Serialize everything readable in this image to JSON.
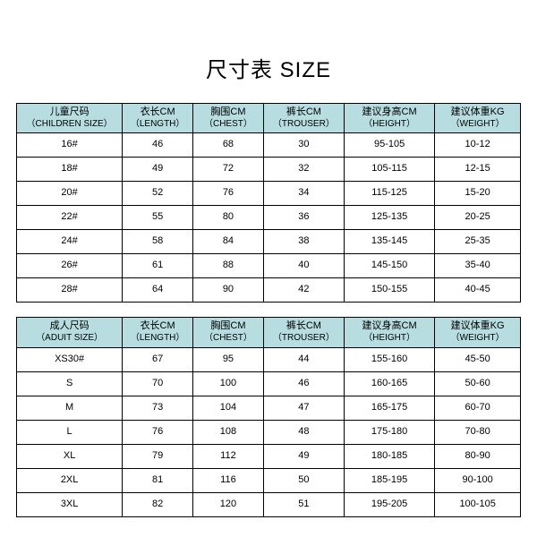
{
  "title": "尺寸表 SIZE",
  "colors": {
    "headerBg": "#b7dde1",
    "border": "#000000",
    "bodyBg": "#ffffff"
  },
  "fonts": {
    "titleSize": 24,
    "cellSize": 11
  },
  "childrenTable": {
    "columns": [
      {
        "cn": "儿童尺码",
        "en": "（CHILDREN SIZE）"
      },
      {
        "cn": "衣长CM",
        "en": "（LENGTH）"
      },
      {
        "cn": "胸围CM",
        "en": "（CHEST）"
      },
      {
        "cn": "裤长CM",
        "en": "（TROUSER）"
      },
      {
        "cn": "建议身高CM",
        "en": "（HEIGHT）"
      },
      {
        "cn": "建议体重KG",
        "en": "（WEIGHT）"
      }
    ],
    "rows": [
      [
        "16#",
        "46",
        "68",
        "30",
        "95-105",
        "10-12"
      ],
      [
        "18#",
        "49",
        "72",
        "32",
        "105-115",
        "12-15"
      ],
      [
        "20#",
        "52",
        "76",
        "34",
        "115-125",
        "15-20"
      ],
      [
        "22#",
        "55",
        "80",
        "36",
        "125-135",
        "20-25"
      ],
      [
        "24#",
        "58",
        "84",
        "38",
        "135-145",
        "25-35"
      ],
      [
        "26#",
        "61",
        "88",
        "40",
        "145-150",
        "35-40"
      ],
      [
        "28#",
        "64",
        "90",
        "42",
        "150-155",
        "40-45"
      ]
    ]
  },
  "adultTable": {
    "columns": [
      {
        "cn": "成人尺码",
        "en": "（ADUIT SIZE）"
      },
      {
        "cn": "衣长CM",
        "en": "（LENGTH）"
      },
      {
        "cn": "胸围CM",
        "en": "（CHEST）"
      },
      {
        "cn": "裤长CM",
        "en": "（TROUSER）"
      },
      {
        "cn": "建议身高CM",
        "en": "（HEIGHT）"
      },
      {
        "cn": "建议体重KG",
        "en": "（WEIGHT）"
      }
    ],
    "rows": [
      [
        "XS30#",
        "67",
        "95",
        "44",
        "155-160",
        "45-50"
      ],
      [
        "S",
        "70",
        "100",
        "46",
        "160-165",
        "50-60"
      ],
      [
        "M",
        "73",
        "104",
        "47",
        "165-175",
        "60-70"
      ],
      [
        "L",
        "76",
        "108",
        "48",
        "175-180",
        "70-80"
      ],
      [
        "XL",
        "79",
        "112",
        "49",
        "180-185",
        "80-90"
      ],
      [
        "2XL",
        "81",
        "116",
        "50",
        "185-195",
        "90-100"
      ],
      [
        "3XL",
        "82",
        "120",
        "51",
        "195-205",
        "100-105"
      ]
    ]
  }
}
